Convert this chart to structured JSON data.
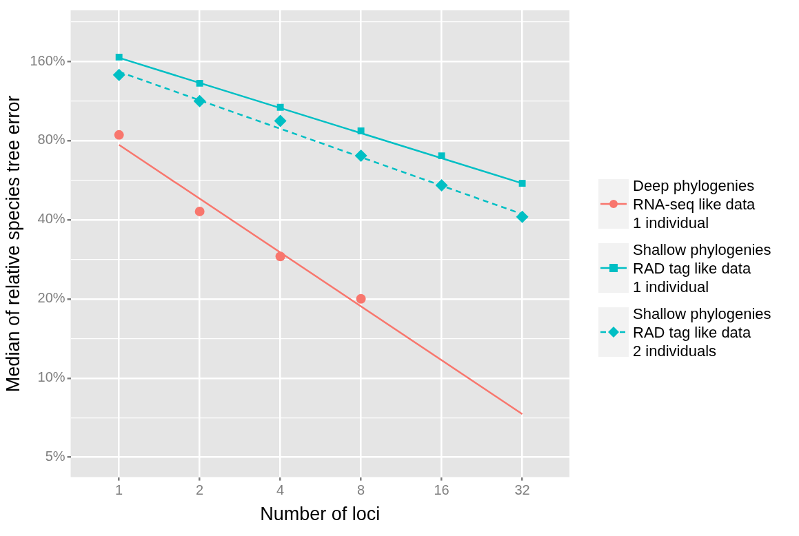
{
  "chart_data": {
    "type": "scatter",
    "xlabel": "Number of loci",
    "ylabel": "Median of relative species tree error",
    "log": "xy",
    "grid": true,
    "legend": "right",
    "xlim": [
      0.66,
      48
    ],
    "xticks": [
      1,
      2,
      4,
      8,
      16,
      32
    ],
    "ylim": [
      4.2,
      250
    ],
    "yticks": [
      {
        "value": 5,
        "label": "5%"
      },
      {
        "value": 7.07,
        "label": null
      },
      {
        "value": 10,
        "label": "10%"
      },
      {
        "value": 14.14,
        "label": null
      },
      {
        "value": 20,
        "label": "20%"
      },
      {
        "value": 28.28,
        "label": null
      },
      {
        "value": 40,
        "label": "40%"
      },
      {
        "value": 56.57,
        "label": null
      },
      {
        "value": 80,
        "label": "80%"
      },
      {
        "value": 113.1,
        "label": null
      },
      {
        "value": 160,
        "label": "160%"
      },
      {
        "value": 226.3,
        "label": null
      }
    ],
    "series": [
      {
        "name": "Deep phylogenies\nRNA-seq like data\n1 individual",
        "color": "#f8766d",
        "marker": "circle",
        "line_style": "solid",
        "x": [
          1,
          2,
          4,
          8
        ],
        "values": [
          84,
          43,
          29,
          20
        ]
      },
      {
        "name": "Shallow phylogenies\nRAD tag like data\n1 individual",
        "color": "#00bfc4",
        "marker": "square",
        "line_style": "solid",
        "x": [
          1,
          2,
          4,
          8,
          16,
          32
        ],
        "values": [
          166,
          132,
          107,
          87,
          70,
          55
        ]
      },
      {
        "name": "Shallow phylogenies\nRAD tag like data\n2 individuals",
        "color": "#00bfc4",
        "marker": "diamond",
        "line_style": "dashed",
        "x": [
          1,
          2,
          4,
          8,
          16,
          32
        ],
        "values": [
          142,
          113,
          95,
          70,
          54,
          41
        ]
      },
      {
        "type": "line",
        "color": "#f8766d",
        "marker": "none",
        "line_style": "solid",
        "x": [
          1,
          32
        ],
        "values": [
          77,
          7.3
        ]
      },
      {
        "type": "line",
        "color": "#00bfc4",
        "marker": "none",
        "line_style": "solid",
        "x": [
          1,
          32
        ],
        "values": [
          165,
          55
        ]
      },
      {
        "type": "line",
        "color": "#00bfc4",
        "marker": "none",
        "line_style": "dashed",
        "x": [
          1,
          32
        ],
        "values": [
          146,
          42
        ]
      }
    ]
  }
}
